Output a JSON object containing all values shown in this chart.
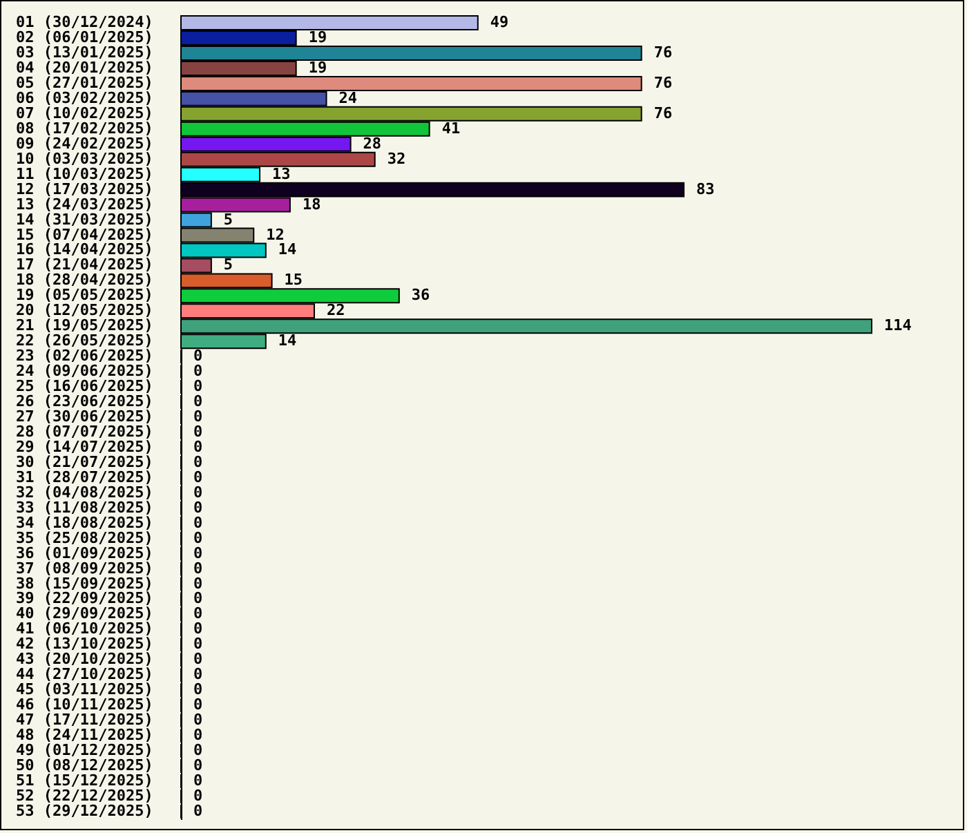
{
  "chart_data": {
    "type": "bar",
    "orientation": "horizontal",
    "data_labels": true,
    "categories": [
      "01 (30/12/2024)",
      "02 (06/01/2025)",
      "03 (13/01/2025)",
      "04 (20/01/2025)",
      "05 (27/01/2025)",
      "06 (03/02/2025)",
      "07 (10/02/2025)",
      "08 (17/02/2025)",
      "09 (24/02/2025)",
      "10 (03/03/2025)",
      "11 (10/03/2025)",
      "12 (17/03/2025)",
      "13 (24/03/2025)",
      "14 (31/03/2025)",
      "15 (07/04/2025)",
      "16 (14/04/2025)",
      "17 (21/04/2025)",
      "18 (28/04/2025)",
      "19 (05/05/2025)",
      "20 (12/05/2025)",
      "21 (19/05/2025)",
      "22 (26/05/2025)",
      "23 (02/06/2025)",
      "24 (09/06/2025)",
      "25 (16/06/2025)",
      "26 (23/06/2025)",
      "27 (30/06/2025)",
      "28 (07/07/2025)",
      "29 (14/07/2025)",
      "30 (21/07/2025)",
      "31 (28/07/2025)",
      "32 (04/08/2025)",
      "33 (11/08/2025)",
      "34 (18/08/2025)",
      "35 (25/08/2025)",
      "36 (01/09/2025)",
      "37 (08/09/2025)",
      "38 (15/09/2025)",
      "39 (22/09/2025)",
      "40 (29/09/2025)",
      "41 (06/10/2025)",
      "42 (13/10/2025)",
      "43 (20/10/2025)",
      "44 (27/10/2025)",
      "45 (03/11/2025)",
      "46 (10/11/2025)",
      "47 (17/11/2025)",
      "48 (24/11/2025)",
      "49 (01/12/2025)",
      "50 (08/12/2025)",
      "51 (15/12/2025)",
      "52 (22/12/2025)",
      "53 (29/12/2025)"
    ],
    "values": [
      49,
      19,
      76,
      19,
      76,
      24,
      76,
      41,
      28,
      32,
      13,
      83,
      18,
      5,
      12,
      14,
      5,
      15,
      36,
      22,
      114,
      14,
      0,
      0,
      0,
      0,
      0,
      0,
      0,
      0,
      0,
      0,
      0,
      0,
      0,
      0,
      0,
      0,
      0,
      0,
      0,
      0,
      0,
      0,
      0,
      0,
      0,
      0,
      0,
      0,
      0,
      0,
      0
    ],
    "colors": [
      "#b3b8e6",
      "#0a1f9e",
      "#1f8496",
      "#874242",
      "#de8a7d",
      "#4652a6",
      "#85a32e",
      "#12c43a",
      "#7417f0",
      "#ad4747",
      "#24ffff",
      "#0f001f",
      "#a81f9e",
      "#40a3de",
      "#858270",
      "#00c7c2",
      "#a64d61",
      "#d95c2b",
      "#0fcc3d",
      "#ff7d7d",
      "#40a17d",
      "#40ad80",
      null,
      null,
      null,
      null,
      null,
      null,
      null,
      null,
      null,
      null,
      null,
      null,
      null,
      null,
      null,
      null,
      null,
      null,
      null,
      null,
      null,
      null,
      null,
      null,
      null,
      null,
      null,
      null,
      null,
      null,
      null
    ]
  }
}
